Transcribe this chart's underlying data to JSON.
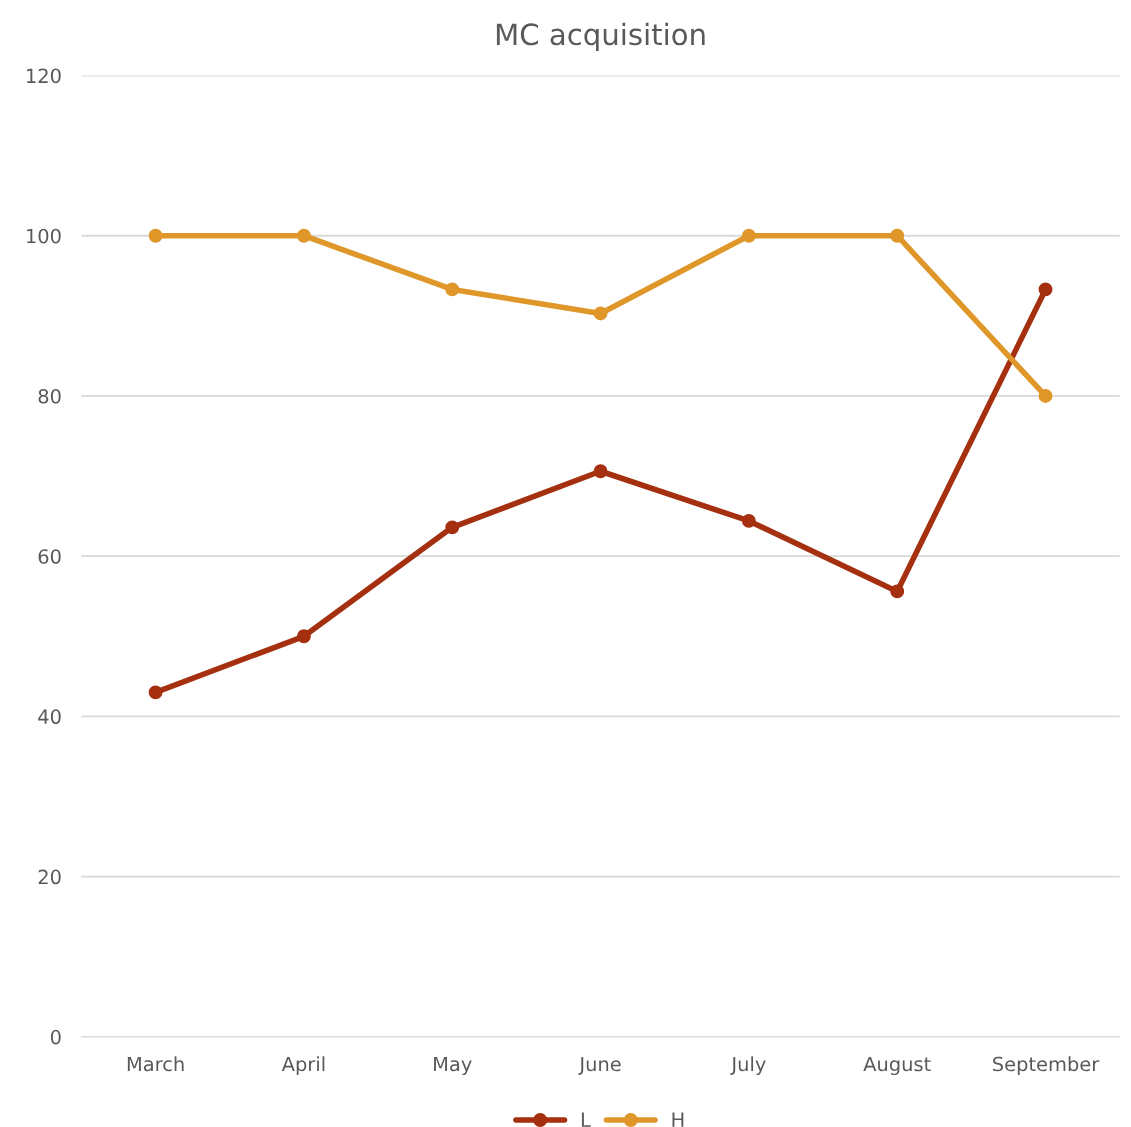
{
  "chart_data": {
    "type": "line",
    "title": "MC acquisition",
    "categories": [
      "March",
      "April",
      "May",
      "June",
      "July",
      "August",
      "September"
    ],
    "series": [
      {
        "name": "L",
        "color": "#a5300f",
        "values": [
          43,
          50,
          63.6,
          70.6,
          64.4,
          55.6,
          93.3
        ]
      },
      {
        "name": "H",
        "color": "#e0972a",
        "values": [
          100,
          100,
          93.3,
          90.3,
          100,
          100,
          80
        ]
      }
    ],
    "ylim": [
      0,
      120
    ],
    "yticks": [
      0,
      20,
      40,
      60,
      80,
      100,
      120
    ],
    "grid": "y",
    "legend": "bottom",
    "marker": "circle",
    "line_style": "solid"
  }
}
